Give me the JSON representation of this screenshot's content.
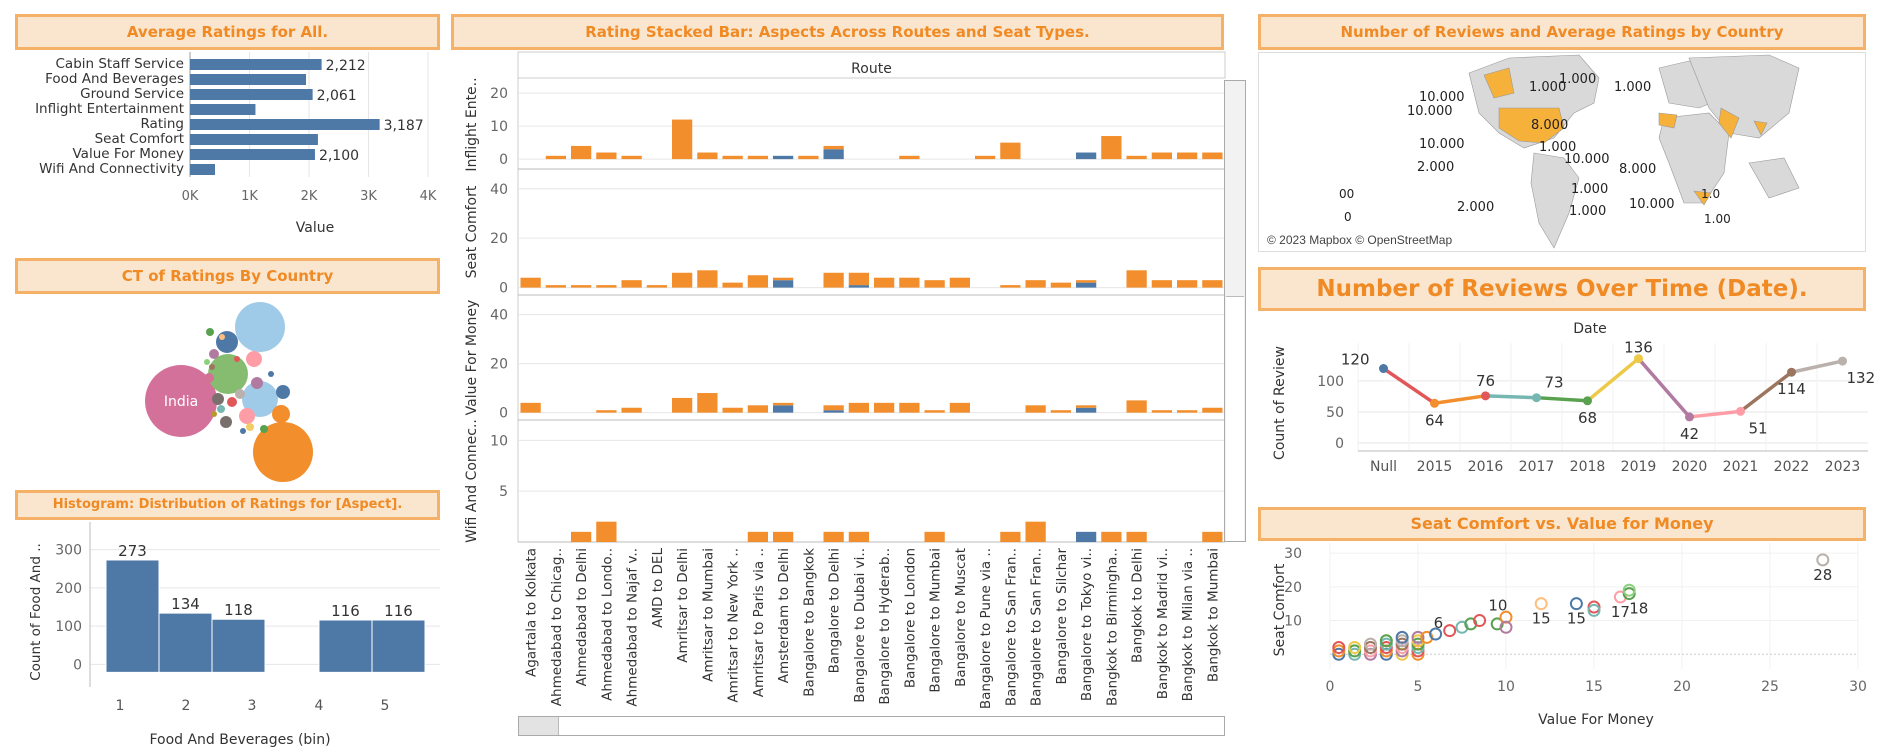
{
  "titles": {
    "avg": "Average Ratings for All.",
    "stacked": "Rating Stacked Bar: Aspects Across Routes and Seat Types.",
    "map": "Number of Reviews and Average Ratings by Country",
    "ct": "CT of Ratings By Country",
    "timeline": "Number of Reviews Over Time (Date).",
    "hist": "Histogram: Distribution of Ratings for [Aspect].",
    "scatter": "Seat Comfort vs. Value for Money"
  },
  "map": {
    "attribution": "© 2023 Mapbox © OpenStreetMap",
    "labels": [
      "10.000",
      "1.000",
      "10.000",
      "1.000",
      "10.000",
      "1.000",
      "2.000",
      "8.000",
      "1.000",
      "10.000",
      "1.000",
      "8.000",
      "00",
      "1.0",
      "10.000",
      "1.000",
      "2.000",
      "1.00",
      "0"
    ]
  },
  "colors": {
    "orange": "#f28e2b",
    "blue": "#4e79a7",
    "grid": "#e6e6e6",
    "accent": "#f08a24"
  },
  "chart_data": [
    {
      "type": "bar",
      "orientation": "horizontal",
      "title": "Average Ratings for All.",
      "categories": [
        "Cabin Staff Service",
        "Food And Beverages",
        "Ground Service",
        "Inflight Entertainment",
        "Rating",
        "Seat Comfort",
        "Value For Money",
        "Wifi And Connectivity"
      ],
      "values": [
        2212,
        1950,
        2061,
        1100,
        3187,
        2150,
        2100,
        420
      ],
      "data_labels": [
        "2,212",
        "",
        "2,061",
        "",
        "3,187",
        "",
        "2,100",
        ""
      ],
      "xlabel": "Value",
      "xticks": [
        "0K",
        "1K",
        "2K",
        "3K",
        "4K"
      ],
      "xlim": [
        0,
        4000
      ]
    },
    {
      "type": "bar",
      "stacked": true,
      "title": "Rating Stacked Bar: Aspects Across Routes and Seat Types.",
      "column_header": "Route",
      "categories": [
        "Agartala to Kolkata",
        "Ahmedabad to Chicag..",
        "Ahmedabad to Delhi",
        "Ahmedabad to Londo..",
        "Ahmedabad to Najaf v..",
        "AMD to DEL",
        "Amritsar to Delhi",
        "Amritsar to Mumbai",
        "Amritsar to New York ..",
        "Amritsar to Paris via ..",
        "Amsterdam to Delhi",
        "Bangalore to Bangkok",
        "Bangalore to Delhi",
        "Bangalore to Dubai vi..",
        "Bangalore to Hyderab..",
        "Bangalore to London",
        "Bangalore to Mumbai",
        "Bangalore to Muscat",
        "Bangalore to Pune via ..",
        "Bangalore to San Fran..",
        "Bangalore to San Fran..",
        "Bangalore to Silchar",
        "Bangalore to Tokyo vi..",
        "Bangkok to Birmingha..",
        "Bangkok to Delhi",
        "Bangkok to Madrid vi..",
        "Bangkok to Milan via ..",
        "Bangkok to Mumbai"
      ],
      "rows": [
        {
          "name": "Inflight Ente..",
          "ylim": [
            -3,
            24
          ],
          "ticks": [
            0,
            10,
            20
          ],
          "orange": [
            0,
            1,
            4,
            2,
            1,
            0,
            12,
            2,
            1,
            1,
            0,
            1,
            1,
            0,
            0,
            1,
            0,
            0,
            1,
            5,
            0,
            0,
            0,
            7,
            1,
            2,
            2,
            2
          ],
          "blue": [
            0,
            0,
            0,
            0,
            0,
            0,
            0,
            0,
            0,
            0,
            1,
            0,
            3,
            0,
            0,
            0,
            0,
            0,
            0,
            0,
            0,
            0,
            2,
            0,
            0,
            0,
            0,
            0
          ]
        },
        {
          "name": "Seat Comfort",
          "ylim": [
            -3,
            48
          ],
          "ticks": [
            0,
            20,
            40
          ],
          "orange": [
            4,
            1,
            1,
            1,
            3,
            1,
            6,
            7,
            2,
            5,
            1,
            0,
            6,
            5,
            4,
            4,
            3,
            4,
            0,
            1,
            3,
            2,
            1,
            0,
            7,
            3,
            3,
            3
          ],
          "blue": [
            0,
            0,
            0,
            0,
            0,
            0,
            0,
            0,
            0,
            0,
            3,
            0,
            0,
            1,
            0,
            0,
            0,
            0,
            0,
            0,
            0,
            0,
            2,
            0,
            0,
            0,
            0,
            0
          ]
        },
        {
          "name": "Value For Money",
          "ylim": [
            -3,
            48
          ],
          "ticks": [
            0,
            20,
            40
          ],
          "orange": [
            4,
            0,
            0,
            1,
            2,
            0,
            6,
            8,
            2,
            3,
            1,
            0,
            2,
            4,
            4,
            4,
            1,
            4,
            0,
            0,
            3,
            1,
            1,
            0,
            5,
            1,
            1,
            2
          ],
          "blue": [
            0,
            0,
            0,
            0,
            0,
            0,
            0,
            0,
            0,
            0,
            3,
            0,
            1,
            0,
            0,
            0,
            0,
            0,
            0,
            0,
            0,
            0,
            2,
            0,
            0,
            0,
            0,
            0
          ]
        },
        {
          "name": "Wifi And Connec..",
          "ylim": [
            0,
            12
          ],
          "ticks": [
            5,
            10
          ],
          "orange": [
            0,
            0,
            1,
            2,
            0,
            0,
            0,
            0,
            0,
            1,
            1,
            0,
            1,
            1,
            0,
            0,
            1,
            0,
            0,
            1,
            2,
            0,
            0,
            1,
            1,
            0,
            0,
            1
          ],
          "blue": [
            0,
            0,
            0,
            0,
            0,
            0,
            0,
            0,
            0,
            0,
            0,
            0,
            0,
            0,
            0,
            0,
            0,
            0,
            0,
            0,
            0,
            0,
            1,
            0,
            0,
            0,
            0,
            0
          ]
        }
      ]
    },
    {
      "type": "bubble",
      "title": "CT of Ratings By Country",
      "labels": [
        "India"
      ]
    },
    {
      "type": "line",
      "title": "Number of Reviews Over Time (Date).",
      "column_header": "Date",
      "categories": [
        "Null",
        "2015",
        "2016",
        "2017",
        "2018",
        "2019",
        "2020",
        "2021",
        "2022",
        "2023"
      ],
      "values": [
        120,
        64,
        76,
        73,
        68,
        136,
        42,
        51,
        114,
        132
      ],
      "ylabel": "Count of Review",
      "yticks": [
        0,
        50,
        100
      ],
      "ylim": [
        0,
        145
      ]
    },
    {
      "type": "bar",
      "title": "Histogram: Distribution of Ratings for [Aspect].",
      "categories": [
        "1",
        "2",
        "3",
        "4",
        "5"
      ],
      "values": [
        273,
        134,
        118,
        116,
        116
      ],
      "xlabel": "Food And Beverages (bin)",
      "ylabel": "Count of Food And ..",
      "yticks": [
        0,
        100,
        200,
        300
      ],
      "ylim": [
        -20,
        320
      ]
    },
    {
      "type": "scatter",
      "title": "Seat Comfort vs. Value for Money",
      "xlabel": "Value For Money",
      "ylabel": "Seat Comfort",
      "xlim": [
        0,
        30
      ],
      "ylim": [
        -2,
        33
      ],
      "xticks": [
        0,
        5,
        10,
        15,
        20,
        25,
        30
      ],
      "yticks": [
        10,
        20,
        30
      ],
      "labelled_points": [
        {
          "x": 6,
          "y": 6,
          "label": "6"
        },
        {
          "x": 9,
          "y": 10,
          "label": "10"
        },
        {
          "x": 12,
          "y": 15,
          "label": "15"
        },
        {
          "x": 14,
          "y": 15,
          "label": "15"
        },
        {
          "x": 16.5,
          "y": 17,
          "label": "17"
        },
        {
          "x": 17,
          "y": 18,
          "label": "18"
        },
        {
          "x": 28,
          "y": 28,
          "label": "28"
        }
      ]
    }
  ]
}
